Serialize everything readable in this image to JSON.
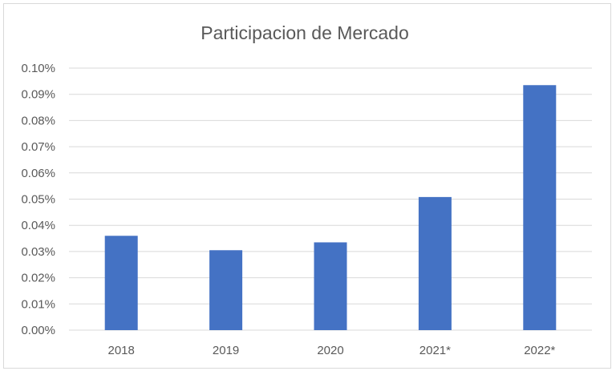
{
  "chart_data": {
    "type": "bar",
    "title": "Participacion de Mercado",
    "categories": [
      "2018",
      "2019",
      "2020",
      "2021*",
      "2022*"
    ],
    "values": [
      0.036,
      0.0305,
      0.0335,
      0.0508,
      0.0935
    ],
    "ylim": [
      0,
      0.1
    ],
    "yticks": [
      "0.00%",
      "0.01%",
      "0.02%",
      "0.03%",
      "0.04%",
      "0.05%",
      "0.06%",
      "0.07%",
      "0.08%",
      "0.09%",
      "0.10%"
    ],
    "bar_color": "#4472C4",
    "grid": true,
    "legend": "none"
  }
}
